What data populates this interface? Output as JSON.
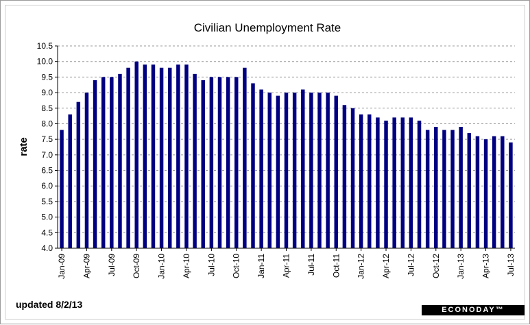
{
  "chart_data": {
    "type": "bar",
    "title": "Civilian Unemployment Rate",
    "ylabel": "rate",
    "xlabel": "",
    "ylim": [
      4.0,
      10.5
    ],
    "y_ticks": [
      "10.5",
      "10.0",
      "9.5",
      "9.0",
      "8.5",
      "8.0",
      "7.5",
      "7.0",
      "6.5",
      "6.0",
      "5.5",
      "5.0",
      "4.5",
      "4.0"
    ],
    "grid": "horizontal dashed",
    "bar_color": "#000080",
    "categories": [
      "Jan-09",
      "Feb-09",
      "Mar-09",
      "Apr-09",
      "May-09",
      "Jun-09",
      "Jul-09",
      "Aug-09",
      "Sep-09",
      "Oct-09",
      "Nov-09",
      "Dec-09",
      "Jan-10",
      "Feb-10",
      "Mar-10",
      "Apr-10",
      "May-10",
      "Jun-10",
      "Jul-10",
      "Aug-10",
      "Sep-10",
      "Oct-10",
      "Nov-10",
      "Dec-10",
      "Jan-11",
      "Feb-11",
      "Mar-11",
      "Apr-11",
      "May-11",
      "Jun-11",
      "Jul-11",
      "Aug-11",
      "Sep-11",
      "Oct-11",
      "Nov-11",
      "Dec-11",
      "Jan-12",
      "Feb-12",
      "Mar-12",
      "Apr-12",
      "May-12",
      "Jun-12",
      "Jul-12",
      "Aug-12",
      "Sep-12",
      "Oct-12",
      "Nov-12",
      "Dec-12",
      "Jan-13",
      "Feb-13",
      "Mar-13",
      "Apr-13",
      "May-13",
      "Jun-13",
      "Jul-13"
    ],
    "values": [
      7.8,
      8.3,
      8.7,
      9.0,
      9.4,
      9.5,
      9.5,
      9.6,
      9.8,
      10.0,
      9.9,
      9.9,
      9.8,
      9.8,
      9.9,
      9.9,
      9.6,
      9.4,
      9.5,
      9.5,
      9.5,
      9.5,
      9.8,
      9.3,
      9.1,
      9.0,
      8.9,
      9.0,
      9.0,
      9.1,
      9.0,
      9.0,
      9.0,
      8.9,
      8.6,
      8.5,
      8.3,
      8.3,
      8.2,
      8.1,
      8.2,
      8.2,
      8.2,
      8.1,
      7.8,
      7.9,
      7.8,
      7.8,
      7.9,
      7.7,
      7.6,
      7.5,
      7.6,
      7.6,
      7.4
    ],
    "x_tick_labels": [
      "Jan-09",
      "Apr-09",
      "Jul-09",
      "Oct-09",
      "Jan-10",
      "Apr-10",
      "Jul-10",
      "Oct-10",
      "Jan-11",
      "Apr-11",
      "Jul-11",
      "Oct-11",
      "Jan-12",
      "Apr-12",
      "Jul-12",
      "Oct-12",
      "Jan-13",
      "Apr-13",
      "Jul-13"
    ]
  },
  "footer": {
    "updated": "updated 8/2/13",
    "brand": "ECONODAY™"
  }
}
